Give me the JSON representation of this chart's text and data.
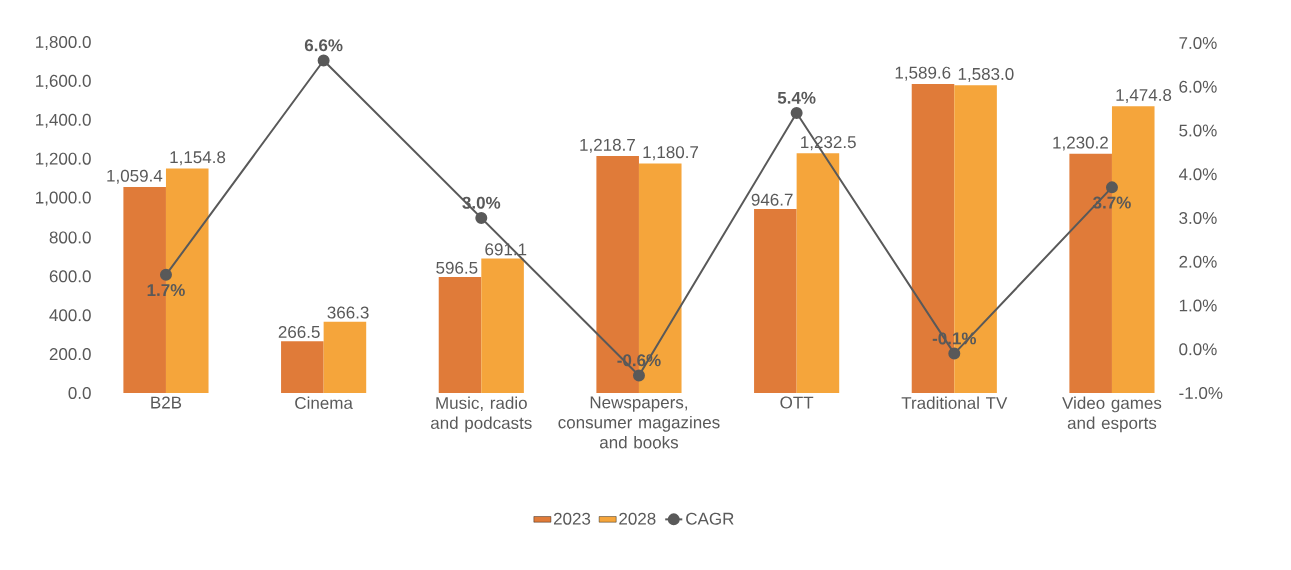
{
  "chart_data": {
    "type": "bar",
    "categories": [
      "B2B",
      "Cinema",
      "Music, radio and podcasts",
      "Newspapers, consumer magazines and books",
      "OTT",
      "Traditional TV",
      "Video games and esports"
    ],
    "series": [
      {
        "name": "2023",
        "color": "#e07b39",
        "values": [
          1059.4,
          266.5,
          596.5,
          1218.7,
          946.7,
          1589.6,
          1230.2
        ],
        "value_labels": [
          "1,059.4",
          "266.5",
          "596.5",
          "1,218.7",
          "946.7",
          "1,589.6",
          "1,230.2"
        ]
      },
      {
        "name": "2028",
        "color": "#f5a53b",
        "values": [
          1154.8,
          366.3,
          691.1,
          1180.7,
          1232.5,
          1583.0,
          1474.8
        ],
        "value_labels": [
          "1,154.8",
          "366.3",
          "691.1",
          "1,180.7",
          "1,232.5",
          "1,583.0",
          "1,474.8"
        ]
      },
      {
        "name": "CAGR",
        "type": "line",
        "axis": "y2",
        "color": "#595959",
        "marker": "circle",
        "line_style": "solid",
        "values": [
          1.7,
          6.6,
          3.0,
          -0.6,
          5.4,
          -0.1,
          3.7
        ],
        "value_labels": [
          "1.7%",
          "6.6%",
          "3.0%",
          "-0.6%",
          "5.4%",
          "-0.1%",
          "3.7%"
        ]
      }
    ],
    "ylim": [
      0,
      1800
    ],
    "yticks": [
      {
        "value": 0,
        "label": "0.0"
      },
      {
        "value": 200,
        "label": "200.0"
      },
      {
        "value": 400,
        "label": "400.0"
      },
      {
        "value": 600,
        "label": "600.0"
      },
      {
        "value": 800,
        "label": "800.0"
      },
      {
        "value": 1000,
        "label": "1,000.0"
      },
      {
        "value": 1200,
        "label": "1,200.0"
      },
      {
        "value": 1400,
        "label": "1,400.0"
      },
      {
        "value": 1600,
        "label": "1,600.0"
      },
      {
        "value": 1800,
        "label": "1,800.0"
      }
    ],
    "y2lim": [
      -1,
      7
    ],
    "y2ticks": [
      {
        "value": -1,
        "label": "-1.0%"
      },
      {
        "value": 0,
        "label": "0.0%"
      },
      {
        "value": 1,
        "label": "1.0%"
      },
      {
        "value": 2,
        "label": "2.0%"
      },
      {
        "value": 3,
        "label": "3.0%"
      },
      {
        "value": 4,
        "label": "4.0%"
      },
      {
        "value": 5,
        "label": "5.0%"
      },
      {
        "value": 6,
        "label": "6.0%"
      },
      {
        "value": 7,
        "label": "7.0%"
      }
    ],
    "legend": "bottom"
  }
}
